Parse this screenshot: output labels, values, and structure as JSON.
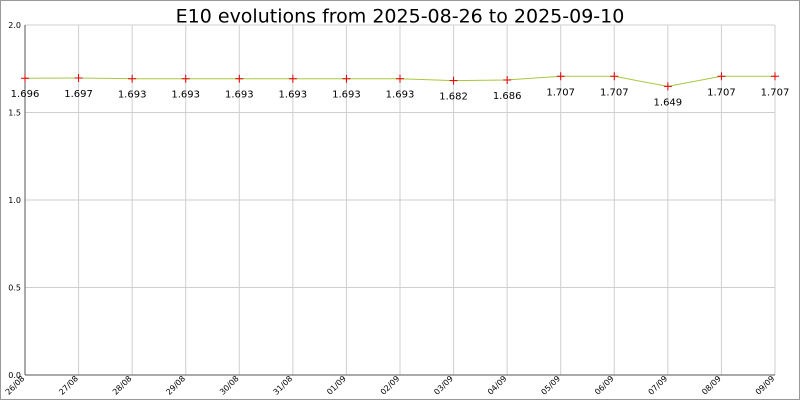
{
  "chart_data": {
    "type": "line",
    "title": "E10 evolutions from 2025-08-26 to 2025-09-10",
    "categories": [
      "26/08",
      "27/08",
      "28/08",
      "29/08",
      "30/08",
      "31/08",
      "01/09",
      "02/09",
      "03/09",
      "04/09",
      "05/09",
      "06/09",
      "07/09",
      "08/09",
      "09/09"
    ],
    "values": [
      1.696,
      1.697,
      1.693,
      1.693,
      1.693,
      1.693,
      1.693,
      1.693,
      1.682,
      1.686,
      1.707,
      1.707,
      1.649,
      1.707,
      1.707
    ],
    "color": "#a8c83c",
    "marker_color": "#e00000",
    "ylim": [
      0,
      2
    ],
    "yticks": [
      {
        "value": 0,
        "label": "0.0"
      },
      {
        "value": 0.5,
        "label": "0.5"
      },
      {
        "value": 1,
        "label": "1.0"
      },
      {
        "value": 1.5,
        "label": "1.5"
      },
      {
        "value": 2,
        "label": "2.0"
      }
    ],
    "grid": true
  }
}
